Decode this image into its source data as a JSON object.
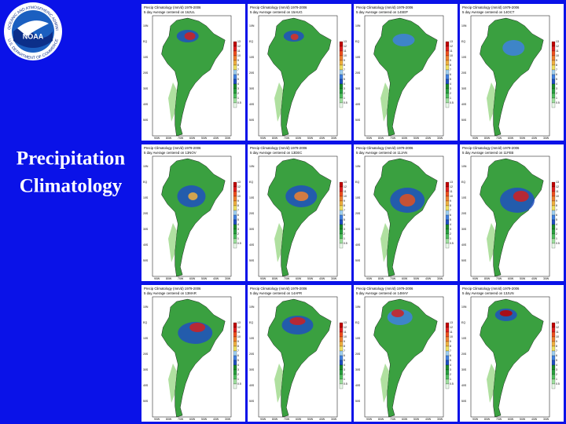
{
  "slide": {
    "title_lines": [
      "Precipitation",
      "Climatology"
    ],
    "logo": {
      "text": "NOAA",
      "ring_top": "NATIONAL OCEANIC AND ATMOSPHERIC ADMINISTRATION",
      "ring_bottom": "U.S. DEPARTMENT OF COMMERCE"
    },
    "panel_header": "Precip Climatology (mm/d) 1979-2006",
    "colorbar_labels": [
      "13",
      "12",
      "11",
      "10",
      "9",
      "8",
      "7",
      "6",
      "5",
      "4",
      "3",
      "2",
      "1",
      "0.5"
    ],
    "lat_labels": [
      "10N",
      "EQ",
      "10S",
      "20S",
      "30S",
      "40S",
      "50S"
    ],
    "lon_labels": [
      "90W",
      "80W",
      "70W",
      "60W",
      "50W",
      "40W",
      "30W"
    ],
    "panels": [
      "5 day Average centered on 16JUL",
      "5 day Average centered on 15AUG",
      "5 day Average centered on 14SEP",
      "5 day Average centered on 14OCT",
      "5 day Average centered on 13NOV",
      "5 day Average centered on 13DEC",
      "5 day Average centered on 11JAN",
      "5 day Average centered on 11FEB",
      "5 day Average centered on 13MAR",
      "5 day Average centered on 14APR",
      "5 day Average centered on 14MAY",
      "5 day Average centered on 13JUN"
    ]
  }
}
